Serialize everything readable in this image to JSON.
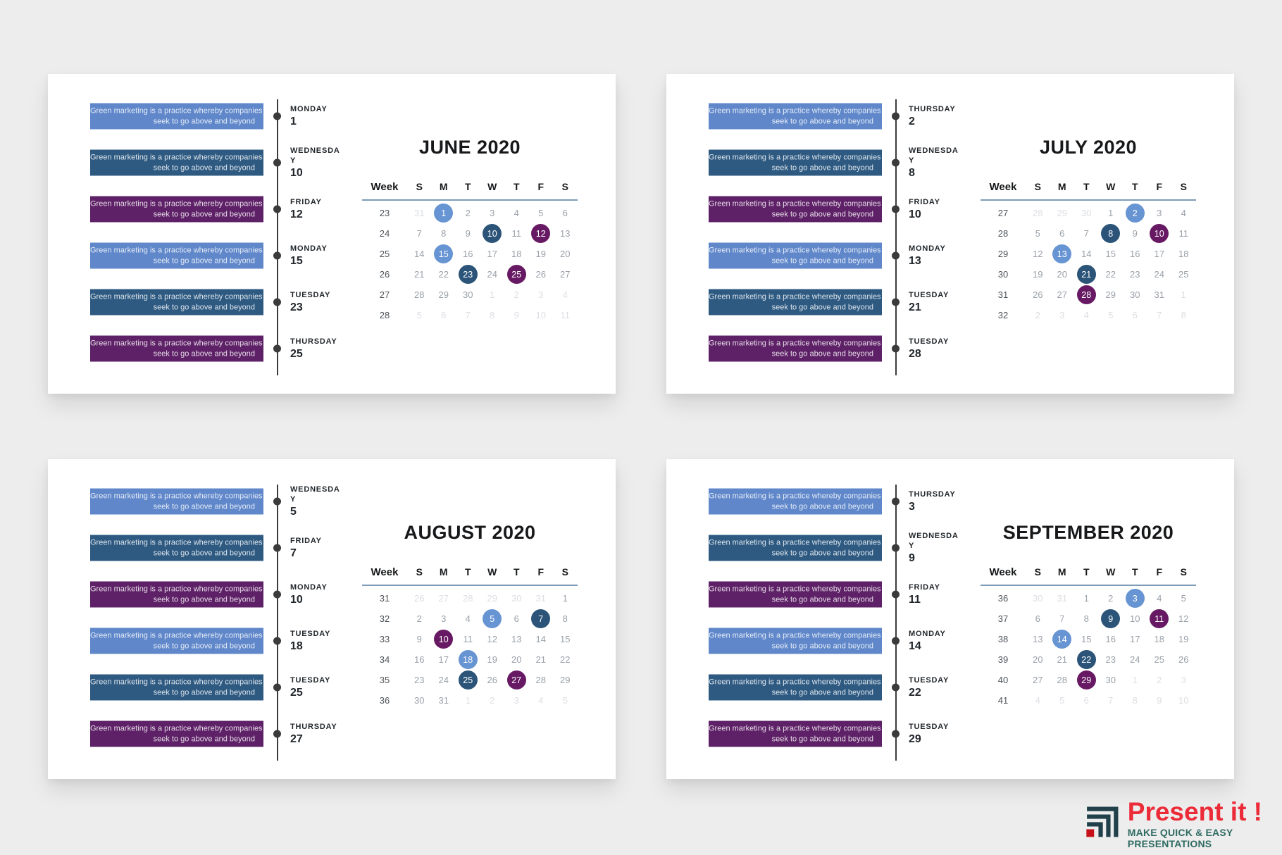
{
  "page": {
    "background": "#ededed"
  },
  "event_text": {
    "line1": "Green marketing is a practice whereby companies",
    "line2": "seek to go above and beyond"
  },
  "weekday_header": [
    "Week",
    "S",
    "M",
    "T",
    "W",
    "T",
    "F",
    "S"
  ],
  "colors": {
    "bar": {
      "light": "#5f87ca",
      "dark": "#2e5a82",
      "purple": "#5e2167"
    },
    "circle": {
      "light": "#6794d2",
      "dark": "#2b5478",
      "purple": "#671a63"
    },
    "timeline": "#3b3b3b",
    "header_underline": "#7c9cb9"
  },
  "panels": [
    {
      "title": "JUNE 2020",
      "events": [
        {
          "day": "MONDAY",
          "date": "1",
          "color": "light"
        },
        {
          "day": "WEDNESDAY",
          "date": "10",
          "color": "dark"
        },
        {
          "day": "FRIDAY",
          "date": "12",
          "color": "purple"
        },
        {
          "day": "MONDAY",
          "date": "15",
          "color": "light"
        },
        {
          "day": "TUESDAY",
          "date": "23",
          "color": "dark"
        },
        {
          "day": "THURSDAY",
          "date": "25",
          "color": "purple"
        }
      ],
      "weeks": [
        {
          "num": "23",
          "days": [
            {
              "d": "31",
              "out": true
            },
            {
              "d": "1",
              "hl": "light"
            },
            {
              "d": "2"
            },
            {
              "d": "3"
            },
            {
              "d": "4"
            },
            {
              "d": "5"
            },
            {
              "d": "6"
            }
          ]
        },
        {
          "num": "24",
          "days": [
            {
              "d": "7"
            },
            {
              "d": "8"
            },
            {
              "d": "9"
            },
            {
              "d": "10",
              "hl": "dark"
            },
            {
              "d": "11"
            },
            {
              "d": "12",
              "hl": "purple"
            },
            {
              "d": "13"
            }
          ]
        },
        {
          "num": "25",
          "days": [
            {
              "d": "14"
            },
            {
              "d": "15",
              "hl": "light"
            },
            {
              "d": "16"
            },
            {
              "d": "17"
            },
            {
              "d": "18"
            },
            {
              "d": "19"
            },
            {
              "d": "20"
            }
          ]
        },
        {
          "num": "26",
          "days": [
            {
              "d": "21"
            },
            {
              "d": "22"
            },
            {
              "d": "23",
              "hl": "dark"
            },
            {
              "d": "24"
            },
            {
              "d": "25",
              "hl": "purple"
            },
            {
              "d": "26"
            },
            {
              "d": "27"
            }
          ]
        },
        {
          "num": "27",
          "days": [
            {
              "d": "28"
            },
            {
              "d": "29"
            },
            {
              "d": "30"
            },
            {
              "d": "1",
              "out": true
            },
            {
              "d": "2",
              "out": true
            },
            {
              "d": "3",
              "out": true
            },
            {
              "d": "4",
              "out": true
            }
          ]
        },
        {
          "num": "28",
          "days": [
            {
              "d": "5",
              "out": true
            },
            {
              "d": "6",
              "out": true
            },
            {
              "d": "7",
              "out": true
            },
            {
              "d": "8",
              "out": true
            },
            {
              "d": "9",
              "out": true
            },
            {
              "d": "10",
              "out": true
            },
            {
              "d": "11",
              "out": true
            }
          ]
        }
      ]
    },
    {
      "title": "JULY 2020",
      "events": [
        {
          "day": "THURSDAY",
          "date": "2",
          "color": "light"
        },
        {
          "day": "WEDNESDAY",
          "date": "8",
          "color": "dark"
        },
        {
          "day": "FRIDAY",
          "date": "10",
          "color": "purple"
        },
        {
          "day": "MONDAY",
          "date": "13",
          "color": "light"
        },
        {
          "day": "TUESDAY",
          "date": "21",
          "color": "dark"
        },
        {
          "day": "TUESDAY",
          "date": "28",
          "color": "purple"
        }
      ],
      "weeks": [
        {
          "num": "27",
          "days": [
            {
              "d": "28",
              "out": true
            },
            {
              "d": "29",
              "out": true
            },
            {
              "d": "30",
              "out": true
            },
            {
              "d": "1"
            },
            {
              "d": "2",
              "hl": "light"
            },
            {
              "d": "3"
            },
            {
              "d": "4"
            }
          ]
        },
        {
          "num": "28",
          "days": [
            {
              "d": "5"
            },
            {
              "d": "6"
            },
            {
              "d": "7"
            },
            {
              "d": "8",
              "hl": "dark"
            },
            {
              "d": "9"
            },
            {
              "d": "10",
              "hl": "purple"
            },
            {
              "d": "11"
            }
          ]
        },
        {
          "num": "29",
          "days": [
            {
              "d": "12"
            },
            {
              "d": "13",
              "hl": "light"
            },
            {
              "d": "14"
            },
            {
              "d": "15"
            },
            {
              "d": "16"
            },
            {
              "d": "17"
            },
            {
              "d": "18"
            }
          ]
        },
        {
          "num": "30",
          "days": [
            {
              "d": "19"
            },
            {
              "d": "20"
            },
            {
              "d": "21",
              "hl": "dark"
            },
            {
              "d": "22"
            },
            {
              "d": "23"
            },
            {
              "d": "24"
            },
            {
              "d": "25"
            }
          ]
        },
        {
          "num": "31",
          "days": [
            {
              "d": "26"
            },
            {
              "d": "27"
            },
            {
              "d": "28",
              "hl": "purple"
            },
            {
              "d": "29"
            },
            {
              "d": "30"
            },
            {
              "d": "31"
            },
            {
              "d": "1",
              "out": true
            }
          ]
        },
        {
          "num": "32",
          "days": [
            {
              "d": "2",
              "out": true
            },
            {
              "d": "3",
              "out": true
            },
            {
              "d": "4",
              "out": true
            },
            {
              "d": "5",
              "out": true
            },
            {
              "d": "6",
              "out": true
            },
            {
              "d": "7",
              "out": true
            },
            {
              "d": "8",
              "out": true
            }
          ]
        }
      ]
    },
    {
      "title": "AUGUST 2020",
      "events": [
        {
          "day": "WEDNESDAY",
          "date": "5",
          "color": "light"
        },
        {
          "day": "FRIDAY",
          "date": "7",
          "color": "dark"
        },
        {
          "day": "MONDAY",
          "date": "10",
          "color": "purple"
        },
        {
          "day": "TUESDAY",
          "date": "18",
          "color": "light"
        },
        {
          "day": "TUESDAY",
          "date": "25",
          "color": "dark"
        },
        {
          "day": "THURSDAY",
          "date": "27",
          "color": "purple"
        }
      ],
      "weeks": [
        {
          "num": "31",
          "days": [
            {
              "d": "26",
              "out": true
            },
            {
              "d": "27",
              "out": true
            },
            {
              "d": "28",
              "out": true
            },
            {
              "d": "29",
              "out": true
            },
            {
              "d": "30",
              "out": true
            },
            {
              "d": "31",
              "out": true
            },
            {
              "d": "1"
            }
          ]
        },
        {
          "num": "32",
          "days": [
            {
              "d": "2"
            },
            {
              "d": "3"
            },
            {
              "d": "4"
            },
            {
              "d": "5",
              "hl": "light"
            },
            {
              "d": "6"
            },
            {
              "d": "7",
              "hl": "dark"
            },
            {
              "d": "8"
            }
          ]
        },
        {
          "num": "33",
          "days": [
            {
              "d": "9"
            },
            {
              "d": "10",
              "hl": "purple"
            },
            {
              "d": "11"
            },
            {
              "d": "12"
            },
            {
              "d": "13"
            },
            {
              "d": "14"
            },
            {
              "d": "15"
            }
          ]
        },
        {
          "num": "34",
          "days": [
            {
              "d": "16"
            },
            {
              "d": "17"
            },
            {
              "d": "18",
              "hl": "light"
            },
            {
              "d": "19"
            },
            {
              "d": "20"
            },
            {
              "d": "21"
            },
            {
              "d": "22"
            }
          ]
        },
        {
          "num": "35",
          "days": [
            {
              "d": "23"
            },
            {
              "d": "24"
            },
            {
              "d": "25",
              "hl": "dark"
            },
            {
              "d": "26"
            },
            {
              "d": "27",
              "hl": "purple"
            },
            {
              "d": "28"
            },
            {
              "d": "29"
            }
          ]
        },
        {
          "num": "36",
          "days": [
            {
              "d": "30"
            },
            {
              "d": "31"
            },
            {
              "d": "1",
              "out": true
            },
            {
              "d": "2",
              "out": true
            },
            {
              "d": "3",
              "out": true
            },
            {
              "d": "4",
              "out": true
            },
            {
              "d": "5",
              "out": true
            }
          ]
        }
      ]
    },
    {
      "title": "SEPTEMBER 2020",
      "events": [
        {
          "day": "THURSDAY",
          "date": "3",
          "color": "light"
        },
        {
          "day": "WEDNESDAY",
          "date": "9",
          "color": "dark"
        },
        {
          "day": "FRIDAY",
          "date": "11",
          "color": "purple"
        },
        {
          "day": "MONDAY",
          "date": "14",
          "color": "light"
        },
        {
          "day": "TUESDAY",
          "date": "22",
          "color": "dark"
        },
        {
          "day": "TUESDAY",
          "date": "29",
          "color": "purple"
        }
      ],
      "weeks": [
        {
          "num": "36",
          "days": [
            {
              "d": "30",
              "out": true
            },
            {
              "d": "31",
              "out": true
            },
            {
              "d": "1"
            },
            {
              "d": "2"
            },
            {
              "d": "3",
              "hl": "light"
            },
            {
              "d": "4"
            },
            {
              "d": "5"
            }
          ]
        },
        {
          "num": "37",
          "days": [
            {
              "d": "6"
            },
            {
              "d": "7"
            },
            {
              "d": "8"
            },
            {
              "d": "9",
              "hl": "dark"
            },
            {
              "d": "10"
            },
            {
              "d": "11",
              "hl": "purple"
            },
            {
              "d": "12"
            }
          ]
        },
        {
          "num": "38",
          "days": [
            {
              "d": "13"
            },
            {
              "d": "14",
              "hl": "light"
            },
            {
              "d": "15"
            },
            {
              "d": "16"
            },
            {
              "d": "17"
            },
            {
              "d": "18"
            },
            {
              "d": "19"
            }
          ]
        },
        {
          "num": "39",
          "days": [
            {
              "d": "20"
            },
            {
              "d": "21"
            },
            {
              "d": "22",
              "hl": "dark"
            },
            {
              "d": "23"
            },
            {
              "d": "24"
            },
            {
              "d": "25"
            },
            {
              "d": "26"
            }
          ]
        },
        {
          "num": "40",
          "days": [
            {
              "d": "27"
            },
            {
              "d": "28"
            },
            {
              "d": "29",
              "hl": "purple"
            },
            {
              "d": "30"
            },
            {
              "d": "1",
              "out": true
            },
            {
              "d": "2",
              "out": true
            },
            {
              "d": "3",
              "out": true
            }
          ]
        },
        {
          "num": "41",
          "days": [
            {
              "d": "4",
              "out": true
            },
            {
              "d": "5",
              "out": true
            },
            {
              "d": "6",
              "out": true
            },
            {
              "d": "7",
              "out": true
            },
            {
              "d": "8",
              "out": true
            },
            {
              "d": "9",
              "out": true
            },
            {
              "d": "10",
              "out": true
            }
          ]
        }
      ]
    }
  ],
  "logo": {
    "title": "Present it !",
    "tagline": "MAKE QUICK & EASY PRESENTATIONS",
    "title_color": "#ec2b38",
    "tagline_color": "#2f6b62",
    "icon": "nested-corners-chart-icon"
  }
}
